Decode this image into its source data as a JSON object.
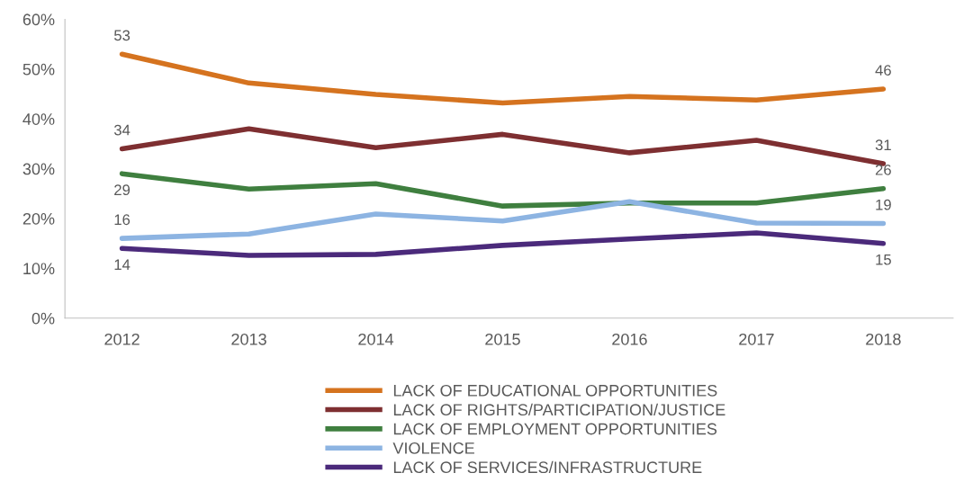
{
  "chart_data": {
    "type": "line",
    "categories": [
      "2012",
      "2013",
      "2014",
      "2015",
      "2016",
      "2017",
      "2018"
    ],
    "ylim": [
      0,
      60
    ],
    "yticks": [
      {
        "value": 0,
        "label": "0%"
      },
      {
        "value": 10,
        "label": "10%"
      },
      {
        "value": 20,
        "label": "20%"
      },
      {
        "value": 30,
        "label": "30%"
      },
      {
        "value": 40,
        "label": "40%"
      },
      {
        "value": 50,
        "label": "50%"
      },
      {
        "value": 60,
        "label": "60%"
      }
    ],
    "grid": false,
    "legend": "bottom",
    "marker": "none",
    "line_style": "solid",
    "series": [
      {
        "name": "LACK OF EDUCATIONAL OPPORTUNITIES",
        "color": "#d5731f",
        "values": [
          53,
          47.2,
          44.9,
          43.2,
          44.5,
          43.8,
          46
        ],
        "value_labels": [
          "53",
          null,
          null,
          null,
          null,
          null,
          "46"
        ]
      },
      {
        "name": "LACK OF RIGHTS/PARTICIPATION/JUSTICE",
        "color": "#7e2f31",
        "values": [
          34,
          38.0,
          34.2,
          36.9,
          33.2,
          35.7,
          31
        ],
        "value_labels": [
          "34",
          null,
          null,
          null,
          null,
          null,
          "31"
        ]
      },
      {
        "name": "LACK OF EMPLOYMENT OPPORTUNITIES",
        "color": "#3f7f3f",
        "values": [
          29,
          25.9,
          27.0,
          22.5,
          23.1,
          23.1,
          26
        ],
        "value_labels": [
          "29",
          null,
          null,
          null,
          null,
          null,
          "26"
        ]
      },
      {
        "name": "VIOLENCE",
        "color": "#8db4e2",
        "values": [
          16,
          16.9,
          20.9,
          19.5,
          23.4,
          19.1,
          19
        ],
        "value_labels": [
          "16",
          null,
          null,
          null,
          null,
          null,
          "19"
        ]
      },
      {
        "name": "LACK OF SERVICES/INFRASTRUCTURE",
        "color": "#4b2a7b",
        "values": [
          14,
          12.6,
          12.8,
          14.6,
          15.9,
          17.1,
          15
        ],
        "value_labels": [
          "14",
          null,
          null,
          null,
          null,
          null,
          "15"
        ]
      }
    ]
  }
}
